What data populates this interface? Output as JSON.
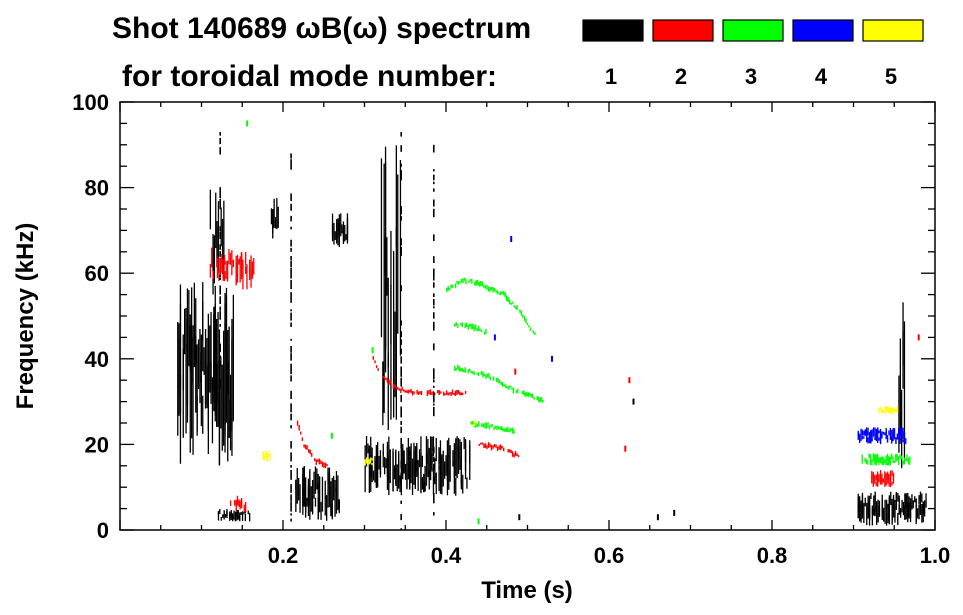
{
  "chart_data": {
    "type": "heatmap",
    "title_line1": "Shot 140689 ωB(ω) spectrum",
    "title_line2": "for toroidal mode number:",
    "xlabel": "Time (s)",
    "ylabel": "Frequency (kHz)",
    "xlim": [
      0.0,
      1.0
    ],
    "ylim": [
      0,
      100
    ],
    "x_ticks": [
      0.2,
      0.4,
      0.6,
      0.8,
      1.0
    ],
    "x_tick_labels": [
      "0.2",
      "0.4",
      "0.6",
      "0.8",
      "1.0"
    ],
    "y_ticks": [
      0,
      20,
      40,
      60,
      80,
      100
    ],
    "y_tick_labels": [
      "0",
      "20",
      "40",
      "60",
      "80",
      "100"
    ],
    "grid": false,
    "legend": {
      "placement": "top-right",
      "entries": [
        {
          "label": "1",
          "color": "#000000"
        },
        {
          "label": "2",
          "color": "#ff0000"
        },
        {
          "label": "3",
          "color": "#00ff00"
        },
        {
          "label": "4",
          "color": "#0000ff"
        },
        {
          "label": "5",
          "color": "#ffff00"
        }
      ]
    },
    "regions": [
      {
        "mode": "1",
        "t": [
          0.07,
          0.14
        ],
        "f": [
          15,
          58
        ],
        "density": 0.55
      },
      {
        "mode": "1",
        "t": [
          0.11,
          0.13
        ],
        "f": [
          55,
          80
        ],
        "density": 0.25
      },
      {
        "mode": "1",
        "t": [
          0.12,
          0.16
        ],
        "f": [
          2,
          5
        ],
        "density": 0.6
      },
      {
        "mode": "1",
        "t": [
          0.185,
          0.195
        ],
        "f": [
          68,
          78
        ],
        "density": 0.6
      },
      {
        "mode": "1",
        "t": [
          0.215,
          0.27
        ],
        "f": [
          2,
          15
        ],
        "density": 0.6
      },
      {
        "mode": "1",
        "t": [
          0.26,
          0.28
        ],
        "f": [
          66,
          74
        ],
        "density": 0.7
      },
      {
        "mode": "1",
        "t": [
          0.3,
          0.43
        ],
        "f": [
          8,
          22
        ],
        "density": 0.65
      },
      {
        "mode": "1",
        "t": [
          0.32,
          0.345
        ],
        "f": [
          20,
          90
        ],
        "density": 0.2
      },
      {
        "mode": "1",
        "t": [
          0.905,
          0.99
        ],
        "f": [
          1,
          9
        ],
        "density": 0.7
      },
      {
        "mode": "1",
        "t": [
          0.955,
          0.965
        ],
        "f": [
          10,
          56
        ],
        "density": 0.3
      },
      {
        "mode": "2",
        "t": [
          0.11,
          0.14
        ],
        "f": [
          58,
          66
        ],
        "density": 0.35
      },
      {
        "mode": "2",
        "t": [
          0.14,
          0.165
        ],
        "f": [
          56,
          65
        ],
        "density": 0.5
      },
      {
        "mode": "2",
        "t": [
          0.135,
          0.155
        ],
        "f": [
          4,
          8
        ],
        "density": 0.35
      },
      {
        "mode": "2",
        "t": [
          0.92,
          0.95
        ],
        "f": [
          10,
          14
        ],
        "density": 0.6
      },
      {
        "mode": "3",
        "t": [
          0.91,
          0.97
        ],
        "f": [
          15,
          18
        ],
        "density": 0.7
      },
      {
        "mode": "4",
        "t": [
          0.905,
          0.965
        ],
        "f": [
          20,
          24
        ],
        "density": 0.7
      },
      {
        "mode": "5",
        "t": [
          0.93,
          0.955
        ],
        "f": [
          27,
          29
        ],
        "density": 0.6
      },
      {
        "mode": "5",
        "t": [
          0.175,
          0.185
        ],
        "f": [
          16,
          19
        ],
        "density": 0.6
      },
      {
        "mode": "5",
        "t": [
          0.3,
          0.31
        ],
        "f": [
          15,
          17
        ],
        "density": 0.6
      }
    ],
    "curves": [
      {
        "mode": "2",
        "points": [
          [
            0.215,
            26
          ],
          [
            0.225,
            20
          ],
          [
            0.24,
            16
          ],
          [
            0.255,
            15
          ]
        ]
      },
      {
        "mode": "2",
        "points": [
          [
            0.31,
            40
          ],
          [
            0.32,
            36
          ],
          [
            0.34,
            33
          ],
          [
            0.36,
            32
          ],
          [
            0.4,
            32
          ],
          [
            0.425,
            32
          ]
        ]
      },
      {
        "mode": "2",
        "points": [
          [
            0.44,
            20
          ],
          [
            0.47,
            19
          ],
          [
            0.49,
            17
          ]
        ]
      },
      {
        "mode": "3",
        "points": [
          [
            0.4,
            56
          ],
          [
            0.42,
            58.5
          ],
          [
            0.44,
            57.5
          ],
          [
            0.47,
            55
          ],
          [
            0.49,
            51
          ],
          [
            0.51,
            45
          ]
        ]
      },
      {
        "mode": "3",
        "points": [
          [
            0.41,
            48
          ],
          [
            0.43,
            47.5
          ],
          [
            0.45,
            46
          ]
        ]
      },
      {
        "mode": "3",
        "points": [
          [
            0.41,
            38
          ],
          [
            0.45,
            36
          ],
          [
            0.48,
            33
          ],
          [
            0.52,
            30
          ]
        ]
      },
      {
        "mode": "3",
        "points": [
          [
            0.43,
            25
          ],
          [
            0.46,
            24
          ],
          [
            0.49,
            23
          ]
        ]
      }
    ],
    "scatter_points": [
      {
        "mode": "4",
        "points": [
          [
            0.48,
            68
          ],
          [
            0.46,
            45
          ],
          [
            0.53,
            40
          ]
        ]
      },
      {
        "mode": "5",
        "points": [
          [
            0.435,
            25
          ]
        ]
      },
      {
        "mode": "2",
        "points": [
          [
            0.625,
            35
          ],
          [
            0.62,
            19
          ],
          [
            0.485,
            37
          ],
          [
            0.98,
            45
          ]
        ]
      },
      {
        "mode": "3",
        "points": [
          [
            0.156,
            95
          ],
          [
            0.31,
            42
          ],
          [
            0.26,
            22
          ],
          [
            0.44,
            2
          ]
        ]
      },
      {
        "mode": "1",
        "points": [
          [
            0.68,
            4
          ],
          [
            0.66,
            3
          ],
          [
            0.49,
            3
          ],
          [
            0.63,
            30
          ]
        ]
      }
    ],
    "vertical_streaks": [
      {
        "mode": "1",
        "t": 0.21,
        "f": [
          2,
          88
        ]
      },
      {
        "mode": "1",
        "t": 0.345,
        "f": [
          0,
          93
        ]
      },
      {
        "mode": "1",
        "t": 0.385,
        "f": [
          2,
          90
        ]
      },
      {
        "mode": "1",
        "t": 0.123,
        "f": [
          30,
          93
        ]
      }
    ]
  }
}
